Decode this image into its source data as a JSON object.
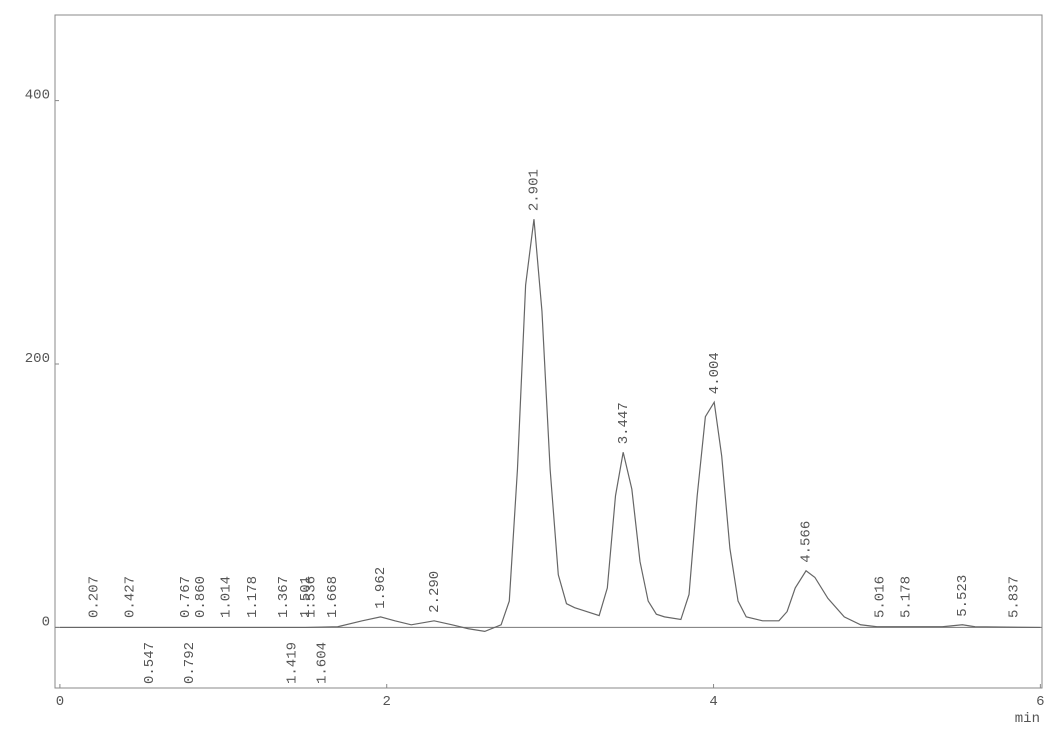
{
  "chart_data": {
    "type": "line",
    "x_unit": "min",
    "xlim": [
      -0.03,
      6.01
    ],
    "ylim": [
      -46,
      465
    ],
    "xticks": [
      0,
      2,
      4,
      6
    ],
    "yticks": [
      0,
      200,
      400
    ],
    "series": [
      {
        "color": "#666666",
        "x": [
          0,
          0.5,
          1.0,
          1.5,
          1.7,
          1.85,
          1.962,
          2.05,
          2.15,
          2.29,
          2.4,
          2.5,
          2.6,
          2.7,
          2.75,
          2.8,
          2.85,
          2.901,
          2.95,
          3.0,
          3.05,
          3.1,
          3.15,
          3.2,
          3.3,
          3.35,
          3.4,
          3.447,
          3.5,
          3.55,
          3.6,
          3.65,
          3.7,
          3.8,
          3.85,
          3.9,
          3.95,
          4.004,
          4.05,
          4.1,
          4.15,
          4.2,
          4.3,
          4.4,
          4.45,
          4.5,
          4.566,
          4.62,
          4.7,
          4.8,
          4.9,
          5.0,
          5.2,
          5.4,
          5.523,
          5.6,
          5.8,
          6.0
        ],
        "values": [
          0,
          0,
          0,
          0,
          0.5,
          5,
          8,
          5,
          2,
          5,
          2,
          -1,
          -3,
          2,
          20,
          120,
          260,
          310,
          240,
          120,
          40,
          18,
          15,
          13,
          9,
          30,
          100,
          133,
          105,
          50,
          20,
          10,
          8,
          6,
          25,
          100,
          160,
          171,
          130,
          60,
          20,
          8,
          5,
          5,
          12,
          30,
          43,
          38,
          22,
          8,
          2,
          0.5,
          0.5,
          0.5,
          2,
          0.5,
          0.2,
          0
        ]
      }
    ],
    "peak_labels_upper": [
      {
        "value": 0.207,
        "label": "0.207"
      },
      {
        "value": 0.427,
        "label": "0.427"
      },
      {
        "value": 0.767,
        "label": "0.767"
      },
      {
        "value": 0.86,
        "label": "0.860"
      },
      {
        "value": 1.014,
        "label": "1.014"
      },
      {
        "value": 1.178,
        "label": "1.178"
      },
      {
        "value": 1.367,
        "label": "1.367"
      },
      {
        "value": 1.501,
        "label": "1.501"
      },
      {
        "value": 1.536,
        "label": "1.536"
      },
      {
        "value": 1.668,
        "label": "1.668"
      },
      {
        "value": 1.962,
        "label": "1.962"
      },
      {
        "value": 2.29,
        "label": "2.290"
      },
      {
        "value": 2.901,
        "label": "2.901"
      },
      {
        "value": 3.447,
        "label": "3.447"
      },
      {
        "value": 4.004,
        "label": "4.004"
      },
      {
        "value": 4.566,
        "label": "4.566"
      },
      {
        "value": 5.016,
        "label": "5.016"
      },
      {
        "value": 5.178,
        "label": "5.178"
      },
      {
        "value": 5.523,
        "label": "5.523"
      },
      {
        "value": 5.837,
        "label": "5.837"
      }
    ],
    "peak_labels_lower": [
      {
        "value": 0.547,
        "label": "0.547"
      },
      {
        "value": 0.792,
        "label": "0.792"
      },
      {
        "value": 1.419,
        "label": "1.419"
      },
      {
        "value": 1.604,
        "label": "1.604"
      }
    ]
  }
}
